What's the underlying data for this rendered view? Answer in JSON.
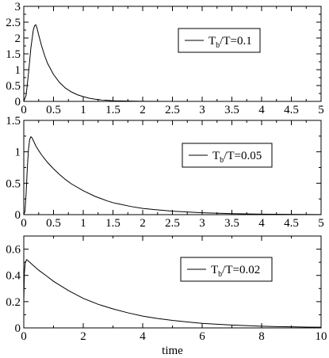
{
  "chart_data": [
    {
      "type": "line",
      "title": "",
      "xlabel": "",
      "ylabel": "",
      "xlim": [
        0,
        5
      ],
      "ylim": [
        0,
        3
      ],
      "xticks": [
        "0",
        "0.5",
        "1",
        "1.5",
        "2",
        "2.5",
        "3",
        "3.5",
        "4",
        "4.5",
        "5"
      ],
      "yticks": [
        "0",
        "0.5",
        "1",
        "1.5",
        "2",
        "2.5",
        "3"
      ],
      "grid": false,
      "legend_position": "top-right",
      "series": [
        {
          "label_main": "T",
          "label_sub": "b",
          "label_rest": "/T=0.1",
          "x": [
            0,
            0.04,
            0.08,
            0.12,
            0.16,
            0.18,
            0.2,
            0.22,
            0.25,
            0.3,
            0.35,
            0.4,
            0.5,
            0.6,
            0.7,
            0.8,
            0.9,
            1.0,
            1.1,
            1.2,
            1.3,
            1.4,
            1.5,
            1.6,
            1.8,
            2.0,
            2.5,
            3.0,
            4.0,
            5.0
          ],
          "y": [
            0,
            0.2,
            0.9,
            1.7,
            2.25,
            2.38,
            2.42,
            2.33,
            2.1,
            1.75,
            1.45,
            1.2,
            0.85,
            0.6,
            0.42,
            0.3,
            0.21,
            0.15,
            0.1,
            0.07,
            0.05,
            0.035,
            0.02,
            0.015,
            0.008,
            0.004,
            0.001,
            0,
            0,
            0
          ]
        }
      ]
    },
    {
      "type": "line",
      "title": "",
      "xlabel": "",
      "ylabel": "",
      "xlim": [
        0,
        5
      ],
      "ylim": [
        0,
        1.5
      ],
      "xticks": [
        "0",
        "0.5",
        "1",
        "1.5",
        "2",
        "2.5",
        "3",
        "3.5",
        "4",
        "4.5",
        "5"
      ],
      "yticks": [
        "0",
        "0.5",
        "1",
        "1.5"
      ],
      "grid": false,
      "legend_position": "top-right",
      "series": [
        {
          "label_main": "T",
          "label_sub": "b",
          "label_rest": "/T=0.05",
          "x": [
            0,
            0.02,
            0.04,
            0.06,
            0.08,
            0.1,
            0.12,
            0.14,
            0.16,
            0.2,
            0.25,
            0.3,
            0.4,
            0.5,
            0.6,
            0.7,
            0.8,
            1.0,
            1.2,
            1.4,
            1.5,
            1.6,
            1.8,
            2.0,
            2.2,
            2.5,
            3.0,
            3.5,
            4.0,
            4.5,
            5.0
          ],
          "y": [
            0,
            0.05,
            0.35,
            0.75,
            1.05,
            1.2,
            1.24,
            1.22,
            1.18,
            1.1,
            1.02,
            0.95,
            0.83,
            0.73,
            0.64,
            0.56,
            0.49,
            0.38,
            0.29,
            0.22,
            0.19,
            0.17,
            0.13,
            0.1,
            0.08,
            0.055,
            0.03,
            0.015,
            0.008,
            0.004,
            0.002
          ]
        }
      ]
    },
    {
      "type": "line",
      "title": "",
      "xlabel": "time",
      "ylabel": "",
      "xlim": [
        0,
        10
      ],
      "ylim": [
        0,
        0.7
      ],
      "xticks": [
        "0",
        "2",
        "4",
        "6",
        "8",
        "10"
      ],
      "yticks": [
        "0",
        "0.2",
        "0.4",
        "0.6"
      ],
      "grid": false,
      "legend_position": "top-right",
      "series": [
        {
          "label_main": "T",
          "label_sub": "b",
          "label_rest": "/T=0.02",
          "x": [
            0,
            0.02,
            0.05,
            0.1,
            0.15,
            0.2,
            0.3,
            0.5,
            0.8,
            1.0,
            1.5,
            2.0,
            2.5,
            3.0,
            3.5,
            4.0,
            4.5,
            5.0,
            5.5,
            6.0,
            6.5,
            7.0,
            7.5,
            8.0,
            8.5,
            9.0,
            9.5,
            10.0
          ],
          "y": [
            0.2,
            0.42,
            0.5,
            0.52,
            0.51,
            0.5,
            0.48,
            0.44,
            0.39,
            0.355,
            0.285,
            0.225,
            0.18,
            0.145,
            0.115,
            0.09,
            0.072,
            0.057,
            0.045,
            0.035,
            0.028,
            0.022,
            0.017,
            0.013,
            0.01,
            0.008,
            0.006,
            0.005
          ]
        }
      ]
    }
  ]
}
